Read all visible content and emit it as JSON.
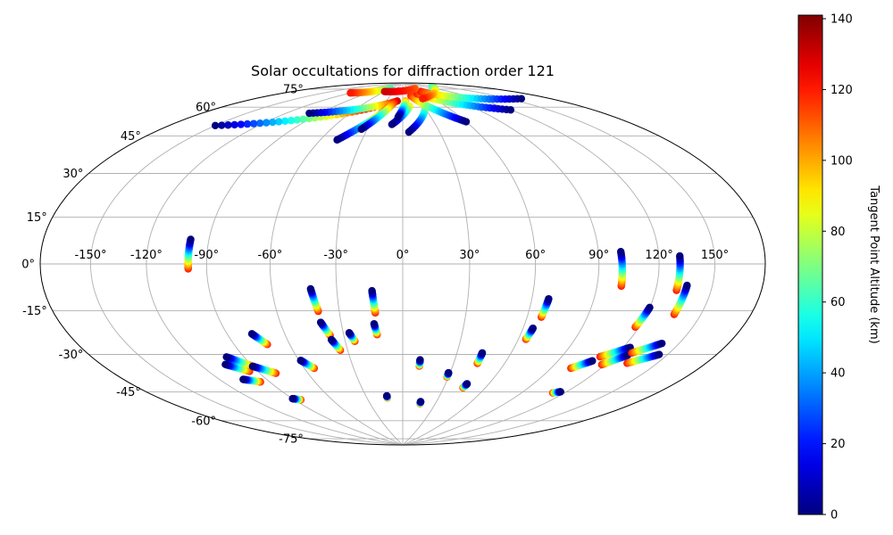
{
  "chart_data": {
    "type": "scatter",
    "projection": "hammer",
    "title": "Solar occultations for diffraction order 121",
    "xlabel": "",
    "ylabel": "",
    "lon_ticks": [
      -150,
      -120,
      -90,
      -60,
      -30,
      0,
      30,
      60,
      90,
      120,
      150
    ],
    "lat_ticks": [
      -75,
      -60,
      -45,
      -30,
      -15,
      0,
      15,
      30,
      45,
      60,
      75
    ],
    "lon_tick_labels": [
      "-150°",
      "-120°",
      "-90°",
      "-60°",
      "-30°",
      "0°",
      "30°",
      "60°",
      "90°",
      "120°",
      "150°"
    ],
    "lat_tick_labels": [
      "-75°",
      "-60°",
      "-45°",
      "-30°",
      "-15°",
      "0°",
      "15°",
      "30°",
      "45°",
      "60°",
      "75°"
    ],
    "grid": true,
    "colorbar": {
      "label": "Tangent Point Altitude (km)",
      "min": 0,
      "max": 141,
      "ticks": [
        0,
        20,
        40,
        60,
        80,
        100,
        120,
        140
      ],
      "tick_labels": [
        "0",
        "20",
        "40",
        "60",
        "80",
        "100",
        "120",
        "140"
      ],
      "colormap": "jet"
    },
    "tracks": [
      {
        "lon": [
          -99,
          -99
        ],
        "lat": [
          10,
          -2
        ],
        "alt": [
          0,
          120
        ]
      },
      {
        "lon": [
          -42,
          -40
        ],
        "lat": [
          -11,
          -21
        ],
        "alt": [
          0,
          120
        ]
      },
      {
        "lon": [
          -40,
          -37
        ],
        "lat": [
          -26,
          -32
        ],
        "alt": [
          0,
          120
        ]
      },
      {
        "lon": [
          -37,
          -34
        ],
        "lat": [
          -34,
          -39
        ],
        "alt": [
          0,
          120
        ]
      },
      {
        "lon": [
          -27,
          -25
        ],
        "lat": [
          -31,
          -35
        ],
        "alt": [
          0,
          120
        ]
      },
      {
        "lon": [
          -14,
          -13
        ],
        "lat": [
          -12,
          -22
        ],
        "alt": [
          0,
          120
        ]
      },
      {
        "lon": [
          -14,
          -13
        ],
        "lat": [
          -27,
          -32
        ],
        "alt": [
          0,
          120
        ]
      },
      {
        "lon": [
          -59,
          -54
        ],
        "lat": [
          -43,
          -47
        ],
        "alt": [
          0,
          120
        ]
      },
      {
        "lon": [
          -77,
          -72
        ],
        "lat": [
          -30,
          -35
        ],
        "alt": [
          0,
          120
        ]
      },
      {
        "lon": [
          -105,
          -95
        ],
        "lat": [
          -42,
          -46
        ],
        "alt": [
          0,
          120
        ]
      },
      {
        "lon": [
          -100,
          -90
        ],
        "lat": [
          -39,
          -44
        ],
        "alt": [
          0,
          120
        ]
      },
      {
        "lon": [
          -90,
          -80
        ],
        "lat": [
          -44,
          -48
        ],
        "alt": [
          0,
          120
        ]
      },
      {
        "lon": [
          -105,
          -96
        ],
        "lat": [
          -49,
          -51
        ],
        "alt": [
          0,
          120
        ]
      },
      {
        "lon": [
          -90,
          -85
        ],
        "lat": [
          -60,
          -61
        ],
        "alt": [
          0,
          120
        ]
      },
      {
        "lon": [
          -13,
          -13
        ],
        "lat": [
          -62,
          -63
        ],
        "alt": [
          0,
          120
        ]
      },
      {
        "lon": [
          10,
          10
        ],
        "lat": [
          -44,
          -47
        ],
        "alt": [
          0,
          120
        ]
      },
      {
        "lon": [
          29,
          29
        ],
        "lat": [
          -50,
          -52
        ],
        "alt": [
          0,
          120
        ]
      },
      {
        "lon": [
          44,
          44
        ],
        "lat": [
          -40,
          -45
        ],
        "alt": [
          0,
          120
        ]
      },
      {
        "lon": [
          45,
          44
        ],
        "lat": [
          -55,
          -57
        ],
        "alt": [
          0,
          120
        ]
      },
      {
        "lon": [
          16,
          16
        ],
        "lat": [
          -65,
          -66
        ],
        "alt": [
          0,
          120
        ]
      },
      {
        "lon": [
          68,
          67
        ],
        "lat": [
          -15,
          -23
        ],
        "alt": [
          0,
          120
        ]
      },
      {
        "lon": [
          65,
          64
        ],
        "lat": [
          -28,
          -33
        ],
        "alt": [
          0,
          120
        ]
      },
      {
        "lon": [
          101,
          102
        ],
        "lat": [
          5,
          -9
        ],
        "alt": [
          0,
          120
        ]
      },
      {
        "lon": [
          131,
          131
        ],
        "lat": [
          3,
          -10
        ],
        "alt": [
          0,
          120
        ]
      },
      {
        "lon": [
          136,
          135
        ],
        "lat": [
          -8,
          -19
        ],
        "alt": [
          0,
          120
        ]
      },
      {
        "lon": [
          120,
          118
        ],
        "lat": [
          -17,
          -25
        ],
        "alt": [
          0,
          120
        ]
      },
      {
        "lon": [
          124,
          112
        ],
        "lat": [
          -33,
          -38
        ],
        "alt": [
          0,
          120
        ]
      },
      {
        "lon": [
          127,
          118
        ],
        "lat": [
          -36,
          -41
        ],
        "alt": [
          0,
          120
        ]
      },
      {
        "lon": [
          110,
          102
        ],
        "lat": [
          -40,
          -44
        ],
        "alt": [
          0,
          120
        ]
      },
      {
        "lon": [
          140,
          128
        ],
        "lat": [
          -30,
          -35
        ],
        "alt": [
          0,
          120
        ]
      },
      {
        "lon": [
          145,
          132
        ],
        "lat": [
          -34,
          -39
        ],
        "alt": [
          0,
          120
        ]
      },
      {
        "lon": [
          116,
          112
        ],
        "lat": [
          -54,
          -55
        ],
        "alt": [
          0,
          120
        ]
      },
      {
        "lon": [
          -150,
          -40
        ],
        "lat": [
          55,
          75
        ],
        "alt": [
          0,
          130
        ]
      },
      {
        "lon": [
          -100,
          -10
        ],
        "lat": [
          68,
          79
        ],
        "alt": [
          0,
          130
        ]
      },
      {
        "lon": [
          -48,
          -20
        ],
        "lat": [
          57,
          75
        ],
        "alt": [
          0,
          120
        ]
      },
      {
        "lon": [
          -35,
          -15
        ],
        "lat": [
          63,
          78
        ],
        "alt": [
          0,
          120
        ]
      },
      {
        "lon": [
          -10,
          10
        ],
        "lat": [
          66,
          76
        ],
        "alt": [
          0,
          90
        ]
      },
      {
        "lon": [
          -5,
          5
        ],
        "lat": [
          70,
          79
        ],
        "alt": [
          0,
          100
        ]
      },
      {
        "lon": [
          5,
          45
        ],
        "lat": [
          62,
          82
        ],
        "alt": [
          0,
          120
        ]
      },
      {
        "lon": [
          60,
          20
        ],
        "lat": [
          66,
          82
        ],
        "alt": [
          0,
          120
        ]
      },
      {
        "lon": [
          120,
          40
        ],
        "lat": [
          68,
          83
        ],
        "alt": [
          0,
          120
        ]
      },
      {
        "lon": [
          160,
          60
        ],
        "lat": [
          70,
          84
        ],
        "alt": [
          0,
          120
        ]
      },
      {
        "lon": [
          -120,
          -60
        ],
        "lat": [
          80,
          86
        ],
        "alt": [
          120,
          60
        ]
      },
      {
        "lon": [
          -60,
          60
        ],
        "lat": [
          84,
          86
        ],
        "alt": [
          130,
          110
        ]
      },
      {
        "lon": [
          40,
          140
        ],
        "lat": [
          80,
          85
        ],
        "alt": [
          120,
          60
        ]
      }
    ]
  }
}
